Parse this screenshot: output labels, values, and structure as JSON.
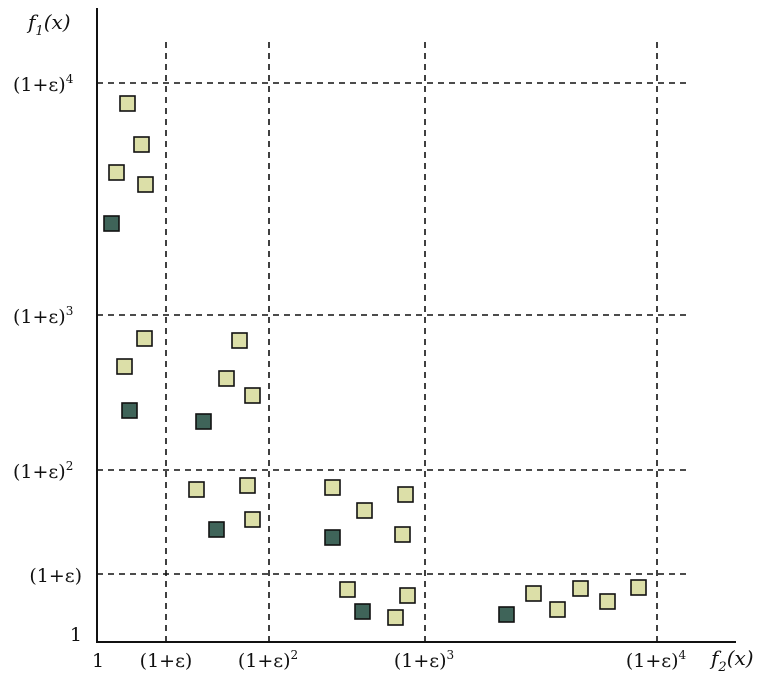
{
  "axes": {
    "y_title": {
      "main": "f",
      "sub": "1",
      "rest": "(x)"
    },
    "x_title": {
      "main": "f",
      "sub": "2",
      "rest": "(x)"
    }
  },
  "y_ticks": [
    {
      "id": "y-tick-1",
      "label": "1",
      "sup": ""
    },
    {
      "id": "y-tick-eps1",
      "label": "(1+ε)",
      "sup": ""
    },
    {
      "id": "y-tick-eps2",
      "label": "(1+ε)",
      "sup": "2"
    },
    {
      "id": "y-tick-eps3",
      "label": "(1+ε)",
      "sup": "3"
    },
    {
      "id": "y-tick-eps4",
      "label": "(1+ε)",
      "sup": "4"
    }
  ],
  "x_ticks": [
    {
      "id": "x-tick-1",
      "label": "1",
      "sup": ""
    },
    {
      "id": "x-tick-eps1",
      "label": "(1+ε)",
      "sup": ""
    },
    {
      "id": "x-tick-eps2",
      "label": "(1+ε)",
      "sup": "2"
    },
    {
      "id": "x-tick-eps3",
      "label": "(1+ε)",
      "sup": "3"
    },
    {
      "id": "x-tick-eps4",
      "label": "(1+ε)",
      "sup": "4"
    }
  ],
  "colors": {
    "light_marker": "#dcdfa8",
    "dark_marker": "#3f6459",
    "stroke": "#111111"
  }
}
